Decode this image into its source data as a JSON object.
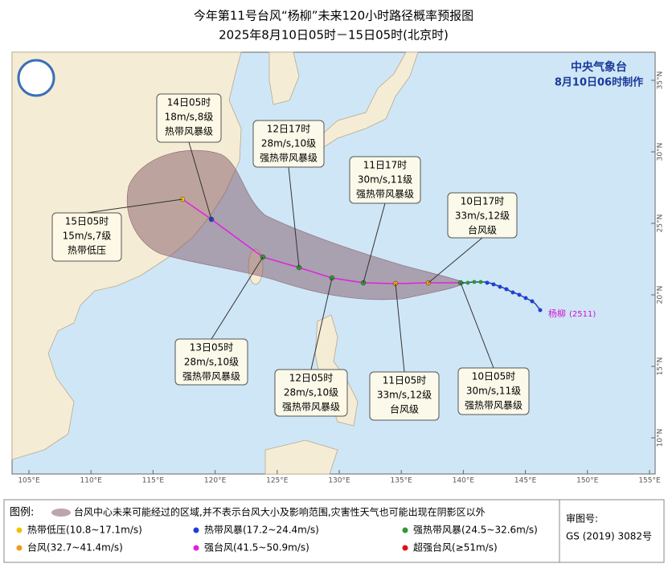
{
  "title": "今年第11号台风“杨柳”未来120小时路径概率预报图",
  "subtitle": "2025年8月10日05时－15日05时(北京时)",
  "agency": "中央气象台",
  "issued": "8月10日06时制作",
  "typhoon_name": "杨柳",
  "typhoon_code": "(2511)",
  "annotations": [
    {
      "lines": [
        "14日05时",
        "18m/s,8级",
        "热带风暴级"
      ]
    },
    {
      "lines": [
        "12日17时",
        "28m/s,10级",
        "强热带风暴级"
      ]
    },
    {
      "lines": [
        "11日17时",
        "30m/s,11级",
        "强热带风暴级"
      ]
    },
    {
      "lines": [
        "10日17时",
        "33m/s,12级",
        "台风级"
      ]
    },
    {
      "lines": [
        "15日05时",
        "15m/s,7级",
        "热带低压"
      ]
    },
    {
      "lines": [
        "13日05时",
        "28m/s,10级",
        "强热带风暴级"
      ]
    },
    {
      "lines": [
        "12日05时",
        "28m/s,10级",
        "强热带风暴级"
      ]
    },
    {
      "lines": [
        "11日05时",
        "33m/s,12级",
        "台风级"
      ]
    },
    {
      "lines": [
        "10日05时",
        "30m/s,11级",
        "强热带风暴级"
      ]
    }
  ],
  "lon_labels": [
    "105°E",
    "110°E",
    "115°E",
    "120°E",
    "125°E",
    "130°E",
    "135°E",
    "140°E",
    "145°E",
    "150°E",
    "155°E"
  ],
  "lat_labels": [
    "35°N",
    "30°N",
    "25°N",
    "20°N",
    "15°N",
    "10°N"
  ],
  "legend": {
    "title": "图例:",
    "cone": "台风中心未来可能经过的区域,并不表示台风大小及影响范围,灾害性天气也可能出现在阴影区以外",
    "items": [
      {
        "label": "热带低压(10.8~17.1m/s)",
        "color": "#f2c200"
      },
      {
        "label": "热带风暴(17.2~24.4m/s)",
        "color": "#1f3fd6"
      },
      {
        "label": "强热带风暴(24.5~32.6m/s)",
        "color": "#2e9a2e"
      },
      {
        "label": "台风(32.7~41.4m/s)",
        "color": "#f29a1a"
      },
      {
        "label": "强台风(41.5~50.9m/s)",
        "color": "#e020e0"
      },
      {
        "label": "超强台风(≥51m/s)",
        "color": "#e01010"
      }
    ]
  },
  "review": {
    "label": "审图号:",
    "number": "GS (2019) 3082号"
  }
}
